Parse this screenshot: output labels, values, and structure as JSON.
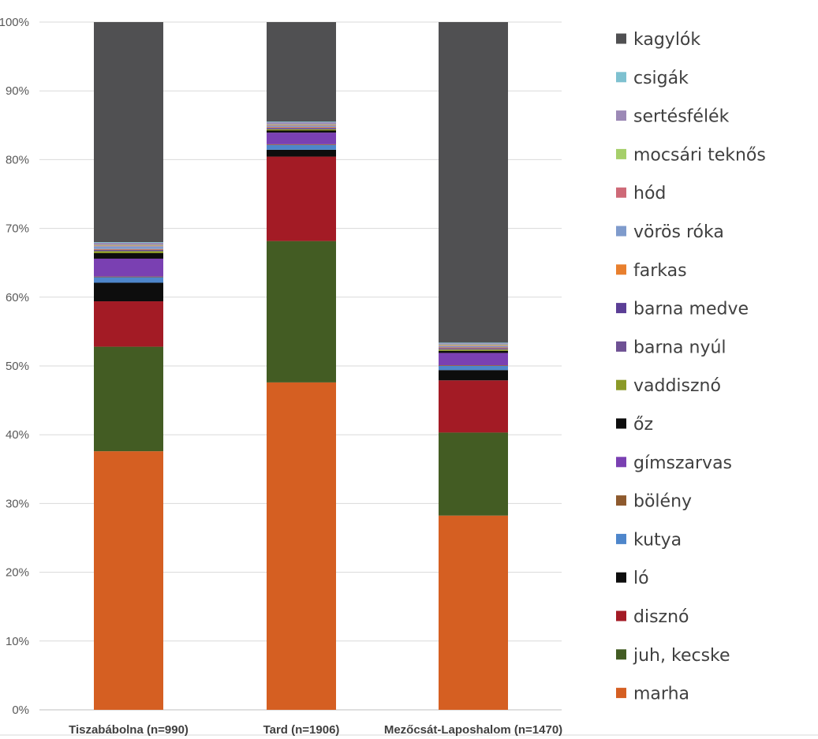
{
  "chart_data": {
    "type": "bar",
    "stacked": true,
    "percent_stacked": true,
    "categories": [
      "Tiszabábolna (n=990)",
      "Tard (n=1906)",
      "Mezőcsát-Laposhalom (n=1470)"
    ],
    "ylim": [
      0,
      100
    ],
    "yticks": [
      "0%",
      "10%",
      "20%",
      "30%",
      "40%",
      "50%",
      "60%",
      "70%",
      "80%",
      "90%",
      "100%"
    ],
    "grid": true,
    "legend_position": "right",
    "series": [
      {
        "name": "marha",
        "color": "#D55F22",
        "values": [
          37.6,
          47.7,
          28.3
        ]
      },
      {
        "name": "juh, kecske",
        "color": "#435C23",
        "values": [
          15.2,
          20.6,
          12.1
        ]
      },
      {
        "name": "disznó",
        "color": "#A31B25",
        "values": [
          6.6,
          12.3,
          7.6
        ]
      },
      {
        "name": "ló",
        "color": "#0D0D0D",
        "values": [
          2.7,
          1.0,
          1.5
        ]
      },
      {
        "name": "kutya",
        "color": "#4E86CB",
        "values": [
          0.8,
          0.7,
          0.6
        ]
      },
      {
        "name": "bölény",
        "color": "#8E5A2E",
        "values": [
          0.1,
          0.1,
          0.1
        ]
      },
      {
        "name": "gímszarvas",
        "color": "#7A40B2",
        "values": [
          2.6,
          1.7,
          1.8
        ]
      },
      {
        "name": "őz",
        "color": "#0D0D0D",
        "values": [
          0.8,
          0.3,
          0.3
        ]
      },
      {
        "name": "vaddisznó",
        "color": "#8B9A28",
        "values": [
          0.3,
          0.2,
          0.2
        ]
      },
      {
        "name": "barna nyúl",
        "color": "#6E5194",
        "values": [
          0.1,
          0.1,
          0.1
        ]
      },
      {
        "name": "barna medve",
        "color": "#5B3E96",
        "values": [
          0.1,
          0.1,
          0.1
        ]
      },
      {
        "name": "farkas",
        "color": "#E87F2E",
        "values": [
          0.1,
          0.1,
          0.1
        ]
      },
      {
        "name": "vörös róka",
        "color": "#7F9BCC",
        "values": [
          0.4,
          0.2,
          0.2
        ]
      },
      {
        "name": "hód",
        "color": "#CE6977",
        "values": [
          0.1,
          0.1,
          0.1
        ]
      },
      {
        "name": "mocsári teknős",
        "color": "#A6CF6A",
        "values": [
          0.1,
          0.1,
          0.1
        ]
      },
      {
        "name": "sertésfélék",
        "color": "#9C89B6",
        "values": [
          0.3,
          0.3,
          0.2
        ]
      },
      {
        "name": "csigák",
        "color": "#7EC1D0",
        "values": [
          0.1,
          0.1,
          0.1
        ]
      },
      {
        "name": "kagylók",
        "color": "#505052",
        "values": [
          32.0,
          14.5,
          46.7
        ]
      }
    ]
  }
}
